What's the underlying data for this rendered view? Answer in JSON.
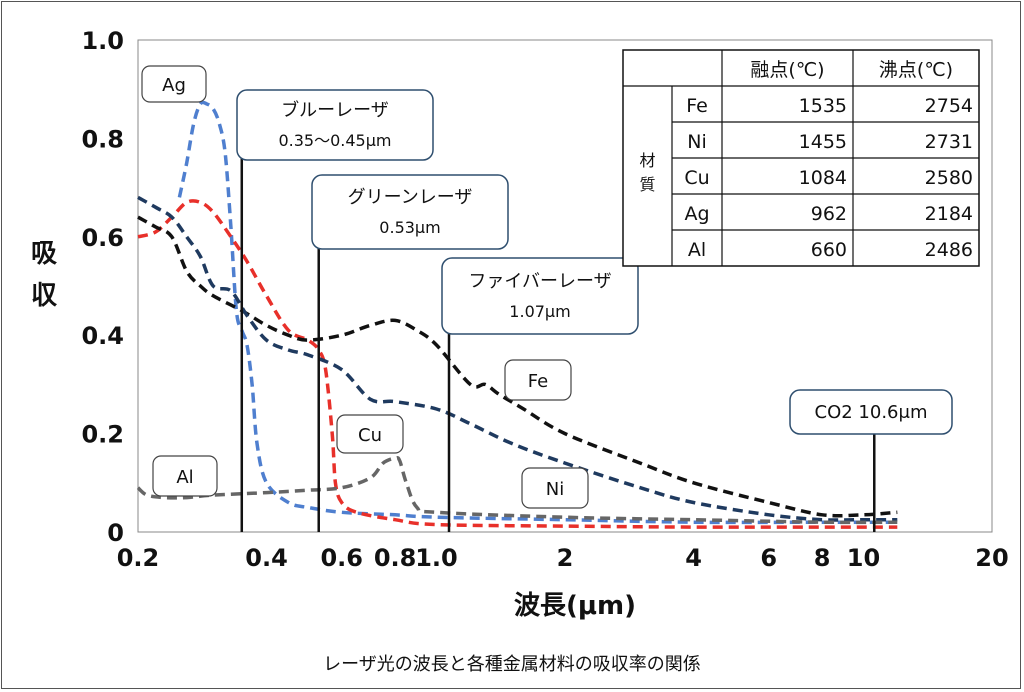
{
  "caption": "レーザ光の波長と各種金属材料の吸収率の関係",
  "chart_data": {
    "type": "line",
    "xlabel": "波長(μm)",
    "ylabel": "吸収",
    "x_scale": "log",
    "xlim": [
      0.2,
      20
    ],
    "ylim": [
      0,
      1.0
    ],
    "x_ticks": [
      0.2,
      0.4,
      0.6,
      0.8,
      1.0,
      2,
      4,
      6,
      8,
      10,
      20
    ],
    "x_tick_labels": [
      "0.2",
      "0.4",
      "0.6",
      "0.8",
      "1.0",
      "2",
      "4",
      "6",
      "8",
      "10",
      "20"
    ],
    "y_ticks": [
      0,
      0.2,
      0.4,
      0.6,
      0.8,
      1.0
    ],
    "y_tick_labels": [
      "0",
      "0.2",
      "0.4",
      "0.6",
      "0.8",
      "1.0"
    ],
    "series": [
      {
        "name": "Ag",
        "color": "#4f7fcf",
        "dash": "dashed",
        "x": [
          0.25,
          0.26,
          0.27,
          0.28,
          0.29,
          0.3,
          0.31,
          0.32,
          0.33,
          0.34,
          0.35,
          0.36,
          0.37,
          0.38,
          0.4,
          0.45,
          0.5,
          0.6,
          0.8,
          1.0,
          2,
          4,
          8,
          12
        ],
        "y": [
          0.68,
          0.75,
          0.83,
          0.87,
          0.87,
          0.86,
          0.83,
          0.77,
          0.62,
          0.45,
          0.41,
          0.38,
          0.3,
          0.18,
          0.1,
          0.06,
          0.05,
          0.04,
          0.035,
          0.03,
          0.025,
          0.02,
          0.02,
          0.02
        ]
      },
      {
        "name": "Cu",
        "color": "#e8302a",
        "dash": "dashed",
        "x": [
          0.2,
          0.22,
          0.24,
          0.26,
          0.28,
          0.3,
          0.33,
          0.36,
          0.4,
          0.45,
          0.5,
          0.53,
          0.55,
          0.57,
          0.58,
          0.6,
          0.65,
          0.8,
          1.0,
          2,
          4,
          8,
          12
        ],
        "y": [
          0.6,
          0.61,
          0.64,
          0.67,
          0.67,
          0.65,
          0.6,
          0.55,
          0.48,
          0.41,
          0.39,
          0.37,
          0.33,
          0.2,
          0.1,
          0.06,
          0.04,
          0.025,
          0.015,
          0.012,
          0.01,
          0.01,
          0.01
        ]
      },
      {
        "name": "Fe",
        "color": "#111111",
        "dash": "dashed",
        "x": [
          0.2,
          0.22,
          0.24,
          0.26,
          0.28,
          0.3,
          0.35,
          0.4,
          0.45,
          0.5,
          0.6,
          0.7,
          0.8,
          0.9,
          1.0,
          1.2,
          1.3,
          1.4,
          1.6,
          2,
          3,
          4,
          6,
          8,
          10,
          12
        ],
        "y": [
          0.64,
          0.62,
          0.6,
          0.53,
          0.5,
          0.48,
          0.45,
          0.42,
          0.4,
          0.39,
          0.4,
          0.42,
          0.43,
          0.41,
          0.38,
          0.3,
          0.3,
          0.28,
          0.25,
          0.2,
          0.14,
          0.1,
          0.06,
          0.035,
          0.035,
          0.04
        ]
      },
      {
        "name": "Ni",
        "color": "#1f3a5f",
        "dash": "dashed",
        "x": [
          0.2,
          0.22,
          0.24,
          0.26,
          0.28,
          0.3,
          0.33,
          0.36,
          0.4,
          0.45,
          0.5,
          0.6,
          0.7,
          0.8,
          1.0,
          1.2,
          1.5,
          2,
          3,
          4,
          6,
          8,
          10,
          12
        ],
        "y": [
          0.68,
          0.66,
          0.64,
          0.6,
          0.56,
          0.5,
          0.49,
          0.44,
          0.39,
          0.37,
          0.36,
          0.33,
          0.27,
          0.265,
          0.25,
          0.22,
          0.18,
          0.14,
          0.09,
          0.06,
          0.035,
          0.025,
          0.025,
          0.025
        ]
      },
      {
        "name": "Al",
        "color": "#666666",
        "dash": "dashed",
        "x": [
          0.2,
          0.21,
          0.23,
          0.26,
          0.3,
          0.4,
          0.5,
          0.6,
          0.7,
          0.75,
          0.8,
          0.82,
          0.85,
          0.9,
          1.0,
          2,
          4,
          8,
          12
        ],
        "y": [
          0.09,
          0.075,
          0.07,
          0.07,
          0.075,
          0.08,
          0.085,
          0.09,
          0.11,
          0.14,
          0.15,
          0.145,
          0.1,
          0.05,
          0.04,
          0.03,
          0.025,
          0.02,
          0.02
        ]
      }
    ],
    "markers": [
      {
        "x": 0.35,
        "label_lines": [
          "ブルーレーザ",
          "0.35〜0.45μm"
        ]
      },
      {
        "x": 0.53,
        "label_lines": [
          "グリーンレーザ",
          "0.53μm"
        ]
      },
      {
        "x": 1.07,
        "label_lines": [
          "ファイバーレーザ",
          "1.07μm"
        ]
      },
      {
        "x": 10.6,
        "label_lines": [
          "CO2  10.6μm"
        ]
      }
    ],
    "series_labels": [
      "Ag",
      "Cu",
      "Fe",
      "Ni",
      "Al"
    ],
    "table": {
      "headers": [
        "融点(℃)",
        "沸点(℃)"
      ],
      "row_group_label": "材質",
      "rows": [
        {
          "material": "Fe",
          "melting": "1535",
          "boiling": "2754"
        },
        {
          "material": "Ni",
          "melting": "1455",
          "boiling": "2731"
        },
        {
          "material": "Cu",
          "melting": "1084",
          "boiling": "2580"
        },
        {
          "material": "Ag",
          "melting": "962",
          "boiling": "2184"
        },
        {
          "material": "Al",
          "melting": "660",
          "boiling": "2486"
        }
      ]
    }
  }
}
